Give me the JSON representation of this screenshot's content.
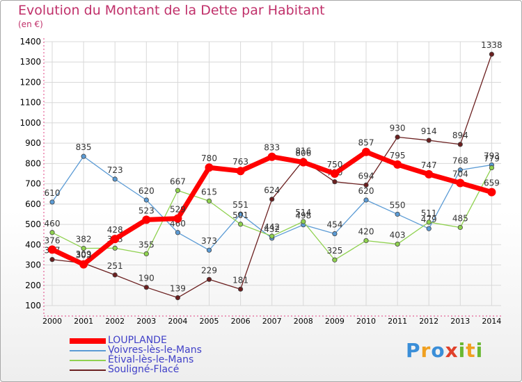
{
  "title": "Evolution du Montant de la Dette par Habitant",
  "unit": "(en €)",
  "logo": {
    "text": "Proxiti",
    "letters": [
      {
        "ch": "P",
        "color": "#3a8ed8"
      },
      {
        "ch": "r",
        "color": "#f0a020"
      },
      {
        "ch": "o",
        "color": "#3a8ed8"
      },
      {
        "ch": "x",
        "color": "#e0402a"
      },
      {
        "ch": "i",
        "color": "#6ab832"
      },
      {
        "ch": "t",
        "color": "#f0a020"
      },
      {
        "ch": "i",
        "color": "#6ab832"
      }
    ]
  },
  "chart_data": {
    "type": "line",
    "title": "Evolution du Montant de la Dette par Habitant",
    "ylabel": "(en €)",
    "ylim": [
      100,
      1400
    ],
    "yticks": [
      100,
      200,
      300,
      400,
      500,
      600,
      700,
      800,
      900,
      1000,
      1100,
      1200,
      1300,
      1400
    ],
    "x": [
      "2000",
      "2001",
      "2002",
      "2003",
      "2004",
      "2005",
      "2006",
      "2007",
      "2008",
      "2009",
      "2010",
      "2011",
      "2012",
      "2013",
      "2014"
    ],
    "grid": true,
    "legend": "bottom-left",
    "series": [
      {
        "name": "Voivres-lès-le-Mans",
        "color": "#5b9bd5",
        "values": [
          610,
          835,
          723,
          620,
          460,
          373,
          551,
          432,
          498,
          454,
          620,
          550,
          479,
          768,
          793
        ]
      },
      {
        "name": "Étival-lès-le-Mans",
        "color": "#8fd14f",
        "values": [
          460,
          382,
          383,
          355,
          667,
          615,
          501,
          442,
          514,
          325,
          420,
          403,
          511,
          485,
          779
        ]
      },
      {
        "name": "Souligné-Flacé",
        "color": "#6b1f1f",
        "values": [
          327,
          309,
          251,
          190,
          139,
          229,
          181,
          624,
          816,
          710,
          694,
          930,
          914,
          894,
          1338
        ]
      },
      {
        "name": "LOUPLANDE",
        "color": "#ff0000",
        "values": [
          376,
          303,
          428,
          523,
          529,
          780,
          763,
          833,
          806,
          750,
          857,
          795,
          747,
          704,
          659
        ]
      }
    ]
  }
}
